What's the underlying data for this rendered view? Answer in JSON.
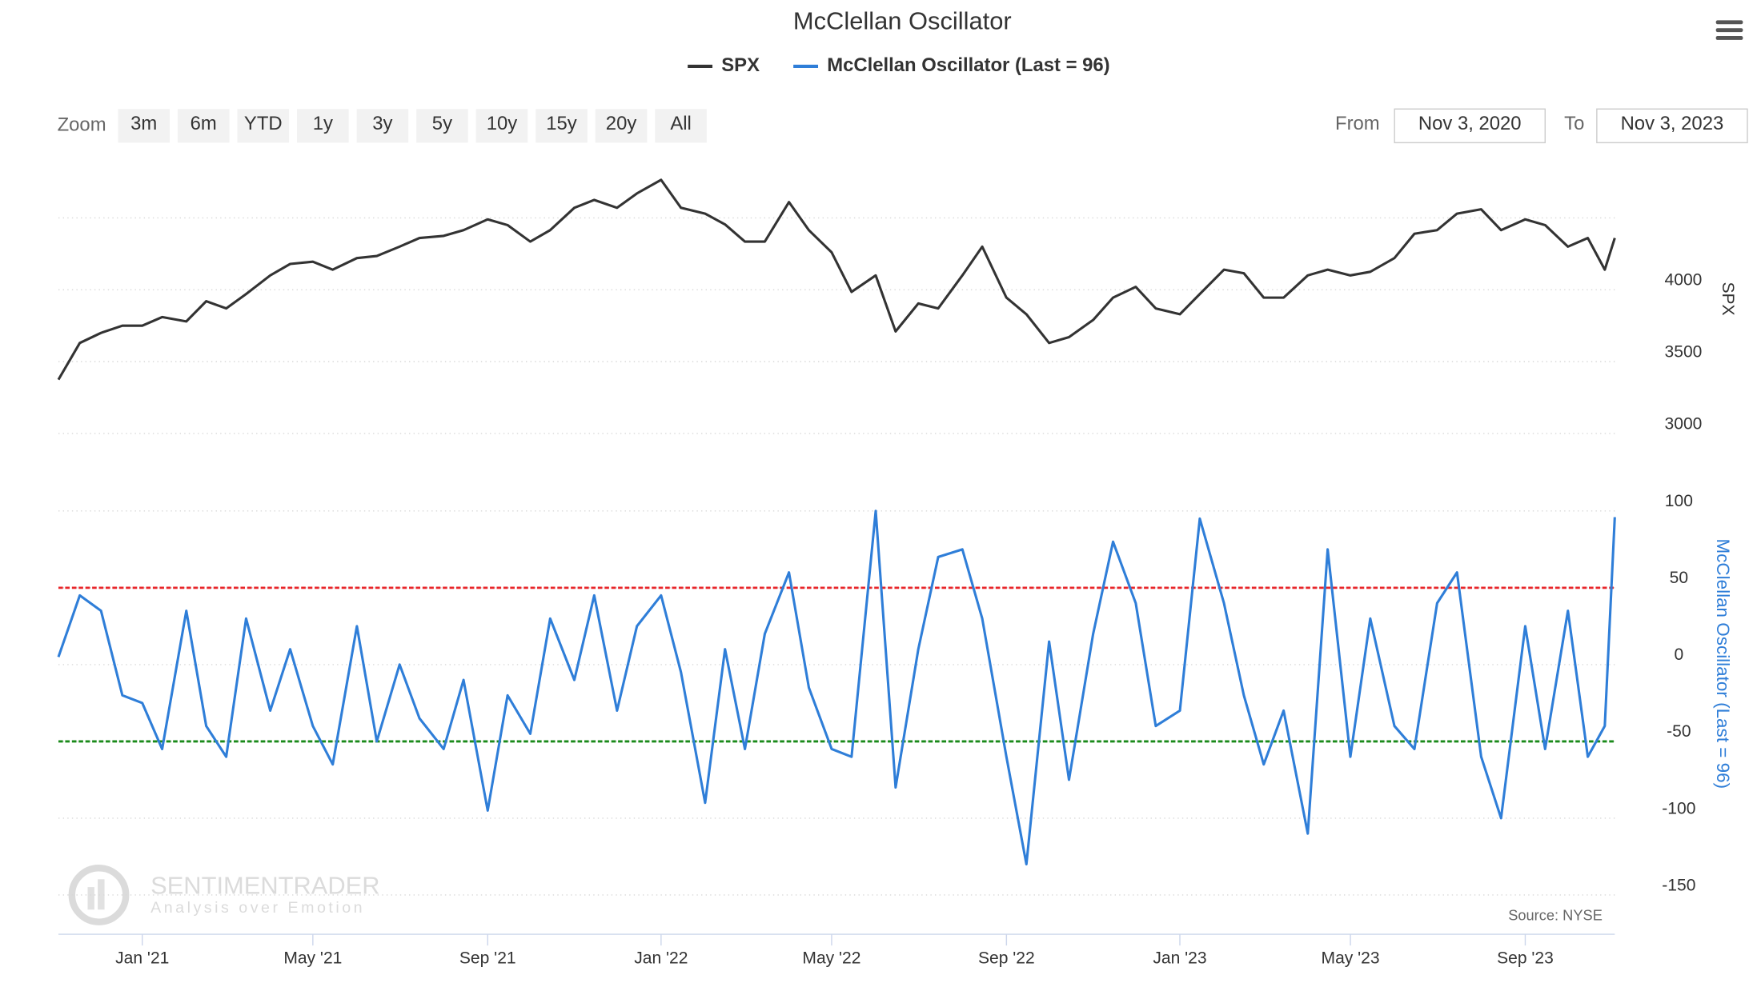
{
  "ui": {
    "zoom_label": "Zoom",
    "zoom_buttons": [
      "3m",
      "6m",
      "YTD",
      "1y",
      "3y",
      "5y",
      "10y",
      "15y",
      "20y",
      "All"
    ],
    "from_label": "From",
    "from": "Nov 3, 2020",
    "to_label": "To",
    "to": "Nov 3, 2023"
  },
  "chart_data": {
    "type": "line",
    "title": "McClellan Oscillator",
    "source": "Source: NYSE",
    "watermark": "SENTIMENTRADER",
    "watermark_tagline": "Analysis over Emotion",
    "y_label": "SPX",
    "y2_label": "McClellan Oscillator (Last = 96)",
    "xlim": [
      "2020-11-03",
      "2023-11-03"
    ],
    "xticks": [
      {
        "value": "2021-01-01",
        "label": "Jan '21"
      },
      {
        "value": "2021-05-01",
        "label": "May '21"
      },
      {
        "value": "2021-09-01",
        "label": "Sep '21"
      },
      {
        "value": "2022-01-01",
        "label": "Jan '22"
      },
      {
        "value": "2022-05-01",
        "label": "May '22"
      },
      {
        "value": "2022-09-01",
        "label": "Sep '22"
      },
      {
        "value": "2023-01-01",
        "label": "Jan '23"
      },
      {
        "value": "2023-05-01",
        "label": "May '23"
      },
      {
        "value": "2023-09-01",
        "label": "Sep '23"
      }
    ],
    "ylim": [
      3000,
      4800
    ],
    "yticks": [
      3000,
      3500,
      4000
    ],
    "ygrid": [
      3000,
      3500,
      4000,
      4500
    ],
    "y2lim": [
      -150,
      100
    ],
    "y2ticks": [
      100,
      50,
      0,
      -50,
      -100,
      -150
    ],
    "threshold_lines": [
      {
        "value": 50,
        "color": "#e8262a"
      },
      {
        "value": -50,
        "color": "#1a8a1a"
      }
    ],
    "x": [
      "2020-11-03",
      "2020-11-18",
      "2020-12-03",
      "2020-12-18",
      "2021-01-01",
      "2021-01-15",
      "2021-02-01",
      "2021-02-15",
      "2021-03-01",
      "2021-03-15",
      "2021-04-01",
      "2021-04-15",
      "2021-05-01",
      "2021-05-15",
      "2021-06-01",
      "2021-06-15",
      "2021-07-01",
      "2021-07-15",
      "2021-08-01",
      "2021-08-15",
      "2021-09-01",
      "2021-09-15",
      "2021-10-01",
      "2021-10-15",
      "2021-11-01",
      "2021-11-15",
      "2021-12-01",
      "2021-12-15",
      "2022-01-01",
      "2022-01-15",
      "2022-02-01",
      "2022-02-15",
      "2022-03-01",
      "2022-03-15",
      "2022-04-01",
      "2022-04-15",
      "2022-05-01",
      "2022-05-15",
      "2022-06-01",
      "2022-06-15",
      "2022-07-01",
      "2022-07-15",
      "2022-08-01",
      "2022-08-15",
      "2022-09-01",
      "2022-09-15",
      "2022-10-01",
      "2022-10-15",
      "2022-11-01",
      "2022-11-15",
      "2022-12-01",
      "2022-12-15",
      "2023-01-01",
      "2023-01-15",
      "2023-02-01",
      "2023-02-15",
      "2023-03-01",
      "2023-03-15",
      "2023-04-01",
      "2023-04-15",
      "2023-05-01",
      "2023-05-15",
      "2023-06-01",
      "2023-06-15",
      "2023-07-01",
      "2023-07-15",
      "2023-08-01",
      "2023-08-15",
      "2023-09-01",
      "2023-09-15",
      "2023-10-01",
      "2023-10-15",
      "2023-10-27",
      "2023-11-03"
    ],
    "series": [
      {
        "name": "SPX",
        "color": "#333333",
        "axis": "y",
        "values": [
          3375,
          3630,
          3700,
          3750,
          3750,
          3810,
          3780,
          3920,
          3870,
          3970,
          4100,
          4180,
          4195,
          4140,
          4220,
          4235,
          4300,
          4360,
          4375,
          4415,
          4490,
          4450,
          4335,
          4415,
          4570,
          4625,
          4570,
          4670,
          4765,
          4570,
          4530,
          4455,
          4335,
          4335,
          4610,
          4415,
          4260,
          3985,
          4100,
          3710,
          3905,
          3870,
          4100,
          4300,
          3945,
          3830,
          3630,
          3670,
          3790,
          3945,
          4020,
          3870,
          3830,
          3970,
          4140,
          4115,
          3945,
          3945,
          4100,
          4140,
          4100,
          4125,
          4220,
          4390,
          4415,
          4530,
          4560,
          4415,
          4490,
          4450,
          4300,
          4360,
          4140,
          4360
        ]
      },
      {
        "name": "McClellan Oscillator (Last = 96)",
        "color": "#2f7ed8",
        "axis": "y2",
        "values": [
          5,
          45,
          35,
          -20,
          -25,
          -55,
          35,
          -40,
          -60,
          30,
          -30,
          10,
          -40,
          -65,
          25,
          -50,
          0,
          -35,
          -55,
          -10,
          -95,
          -20,
          -45,
          30,
          -10,
          45,
          -30,
          25,
          45,
          -5,
          -90,
          10,
          -55,
          20,
          60,
          -15,
          -55,
          -60,
          100,
          -80,
          10,
          70,
          75,
          30,
          -60,
          -130,
          15,
          -75,
          20,
          80,
          40,
          -40,
          -30,
          95,
          40,
          -20,
          -65,
          -30,
          -110,
          75,
          -60,
          30,
          -40,
          -55,
          40,
          60,
          -60,
          -100,
          25,
          -55,
          35,
          -60,
          -40,
          96
        ]
      }
    ]
  }
}
